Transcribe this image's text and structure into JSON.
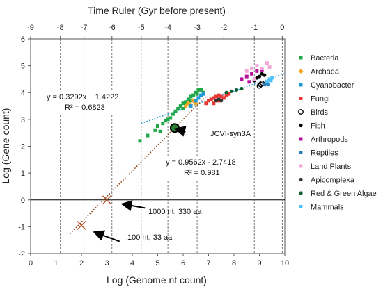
{
  "chart_data": {
    "type": "scatter",
    "title": "",
    "xlabel": "Log (Genome nt count)",
    "ylabel": "Log (Gene count)",
    "top_axis_label": "Time Ruler (Gyr before present)",
    "xlim": [
      0,
      10
    ],
    "ylim": [
      -2,
      6
    ],
    "x_ticks": [
      "0",
      "1",
      "2",
      "3",
      "4",
      "5",
      "6",
      "7",
      "8",
      "9",
      "10"
    ],
    "y_ticks": [
      "-2",
      "-1",
      "0",
      "1",
      "2",
      "3",
      "4",
      "5",
      "6"
    ],
    "top_ticks": [
      {
        "label": "-9",
        "x": 0.0
      },
      {
        "label": "-8",
        "x": 1.17
      },
      {
        "label": "-7",
        "x": 2.1
      },
      {
        "label": "-6",
        "x": 3.2
      },
      {
        "label": "-5",
        "x": 4.35
      },
      {
        "label": "-4",
        "x": 5.4
      },
      {
        "label": "-3",
        "x": 6.55
      },
      {
        "label": "-2",
        "x": 7.6
      },
      {
        "label": "-1",
        "x": 8.8
      },
      {
        "label": "0",
        "x": 9.9
      }
    ],
    "gridlines_x": [
      1.17,
      2.1,
      3.2,
      4.35,
      5.4,
      6.55,
      7.6,
      8.8,
      9.9
    ],
    "legend_position": "right",
    "series": [
      {
        "name": "Bacteria",
        "marker": "square",
        "color": "#22a84a",
        "points": [
          [
            4.9,
            2.6
          ],
          [
            5.0,
            2.75
          ],
          [
            5.2,
            2.85
          ],
          [
            5.3,
            2.95
          ],
          [
            5.5,
            3.05
          ],
          [
            5.6,
            3.2
          ],
          [
            5.7,
            3.3
          ],
          [
            5.8,
            3.4
          ],
          [
            5.9,
            3.5
          ],
          [
            6.0,
            3.6
          ],
          [
            6.1,
            3.65
          ],
          [
            6.2,
            3.75
          ],
          [
            6.3,
            3.85
          ],
          [
            6.4,
            3.9
          ],
          [
            6.5,
            4.0
          ],
          [
            6.6,
            4.1
          ],
          [
            6.7,
            4.1
          ],
          [
            6.8,
            4.0
          ],
          [
            6.3,
            3.7
          ],
          [
            6.0,
            3.4
          ],
          [
            5.4,
            3.0
          ],
          [
            5.1,
            2.55
          ],
          [
            4.6,
            2.4
          ],
          [
            4.3,
            2.2
          ],
          [
            6.55,
            3.95
          ]
        ]
      },
      {
        "name": "Archaea",
        "marker": "diamond",
        "color": "#f5a623",
        "points": [
          [
            6.1,
            3.5
          ],
          [
            6.2,
            3.6
          ],
          [
            6.3,
            3.55
          ],
          [
            6.4,
            3.7
          ],
          [
            6.5,
            3.6
          ]
        ]
      },
      {
        "name": "Cyanobacter",
        "marker": "square",
        "color": "#1f9ad6",
        "points": [
          [
            6.3,
            3.5
          ],
          [
            6.5,
            3.7
          ],
          [
            6.6,
            3.8
          ],
          [
            6.7,
            3.9
          ],
          [
            6.8,
            3.95
          ]
        ]
      },
      {
        "name": "Fungi",
        "marker": "square",
        "color": "#e53935",
        "points": [
          [
            7.0,
            3.7
          ],
          [
            7.1,
            3.75
          ],
          [
            7.2,
            3.8
          ],
          [
            7.3,
            3.85
          ],
          [
            7.4,
            3.9
          ],
          [
            7.5,
            3.85
          ],
          [
            7.6,
            3.8
          ],
          [
            7.7,
            3.9
          ],
          [
            7.8,
            3.95
          ],
          [
            7.4,
            3.7
          ],
          [
            7.2,
            3.6
          ],
          [
            6.9,
            3.6
          ]
        ]
      },
      {
        "name": "Birds",
        "marker": "circle-open",
        "color": "#000000",
        "points": [
          [
            9.0,
            4.25
          ],
          [
            9.05,
            4.3
          ],
          [
            9.1,
            4.35
          ]
        ]
      },
      {
        "name": "Fish",
        "marker": "circle",
        "color": "#000000",
        "points": [
          [
            8.8,
            4.45
          ],
          [
            8.9,
            4.55
          ],
          [
            9.0,
            4.6
          ],
          [
            9.1,
            4.7
          ],
          [
            9.2,
            4.65
          ]
        ]
      },
      {
        "name": "Arthropods",
        "marker": "square",
        "color": "#b5119c",
        "points": [
          [
            8.3,
            4.5
          ],
          [
            8.5,
            4.6
          ],
          [
            8.7,
            4.7
          ],
          [
            8.9,
            4.8
          ],
          [
            9.1,
            4.85
          ],
          [
            8.6,
            4.4
          ]
        ]
      },
      {
        "name": "Reptiles",
        "marker": "square",
        "color": "#2a7db8",
        "points": [
          [
            9.2,
            4.3
          ],
          [
            9.3,
            4.35
          ],
          [
            9.35,
            4.3
          ]
        ]
      },
      {
        "name": "Land Plants",
        "marker": "square",
        "color": "#f3a7d8",
        "points": [
          [
            8.5,
            4.8
          ],
          [
            8.7,
            4.9
          ],
          [
            8.9,
            5.0
          ],
          [
            9.1,
            4.9
          ],
          [
            9.3,
            5.1
          ],
          [
            9.4,
            4.95
          ],
          [
            8.8,
            4.5
          ]
        ]
      },
      {
        "name": "Apicomplexa",
        "marker": "circle",
        "color": "#333333",
        "points": [
          [
            7.3,
            3.7
          ],
          [
            7.4,
            3.75
          ],
          [
            7.5,
            3.7
          ]
        ]
      },
      {
        "name": "Red & Green Algae",
        "marker": "circle",
        "color": "#0b5e2e",
        "points": [
          [
            7.7,
            4.0
          ],
          [
            7.9,
            4.05
          ],
          [
            8.1,
            4.1
          ],
          [
            8.3,
            4.15
          ]
        ]
      },
      {
        "name": "Mammals",
        "marker": "square",
        "color": "#4fc3f7",
        "points": [
          [
            9.3,
            4.4
          ],
          [
            9.4,
            4.5
          ],
          [
            9.45,
            4.45
          ],
          [
            9.5,
            4.55
          ]
        ]
      }
    ],
    "fits": [
      {
        "equation": "y = 0.3292x + 1.4222",
        "r2": "R² = 0.6823",
        "x": [
          4.35,
          10.0
        ],
        "color": "#1f9ad6",
        "style": "dotted"
      },
      {
        "equation": "y = 0.9562x - 2.7418",
        "r2": "R² = 0.981",
        "x": [
          1.55,
          6.9
        ],
        "color": "#8b4513",
        "style": "dotted"
      }
    ],
    "crosses": [
      {
        "x": 3.0,
        "y": 0.0
      },
      {
        "x": 2.0,
        "y": -0.95
      }
    ],
    "jcvi_point": {
      "x": 5.67,
      "y": 2.68
    },
    "annotations": [
      {
        "text": "JCVI-syn3A",
        "from": [
          6.1,
          2.55
        ],
        "to": [
          5.7,
          2.65
        ]
      },
      {
        "text": "1000 nt; 330 aa",
        "from": [
          4.5,
          -0.3
        ],
        "to": [
          3.6,
          -0.15
        ]
      },
      {
        "text": "100 nt; 33 aa",
        "from": [
          3.5,
          -1.55
        ],
        "to": [
          2.5,
          -1.2
        ]
      }
    ]
  }
}
